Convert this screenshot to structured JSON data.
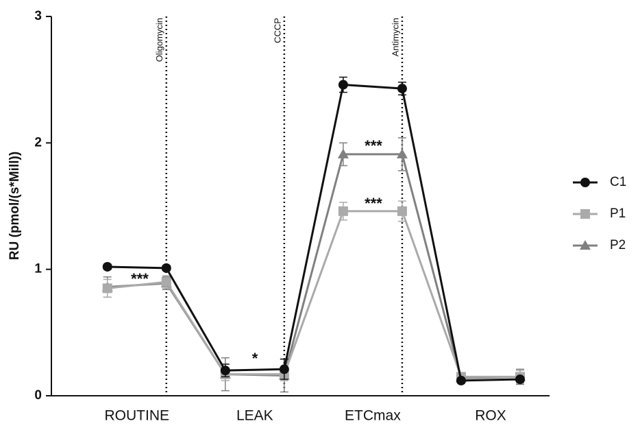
{
  "chart_data": {
    "type": "line",
    "ylabel": "RU (pmol/(s*Mill))",
    "x": [
      1,
      2,
      3,
      4,
      5,
      6,
      7,
      8
    ],
    "xlim": [
      0.05,
      8.5
    ],
    "xticks": [
      {
        "value": 1.5,
        "label": "ROUTINE"
      },
      {
        "value": 3.5,
        "label": "LEAK"
      },
      {
        "value": 5.5,
        "label": "ETCmax"
      },
      {
        "value": 7.5,
        "label": "ROX"
      }
    ],
    "ylim": [
      0,
      3
    ],
    "yticks": [
      0,
      1,
      2,
      3
    ],
    "series": [
      {
        "name": "C1",
        "color": "#111111",
        "marker": "circle",
        "values": [
          1.02,
          1.01,
          0.2,
          0.21,
          2.46,
          2.43,
          0.12,
          0.13
        ],
        "errors": [
          0.02,
          0.02,
          0.05,
          0.08,
          0.06,
          0.05,
          0.02,
          0.02
        ]
      },
      {
        "name": "P1",
        "color": "#aaaaaa",
        "marker": "square",
        "values": [
          0.85,
          0.9,
          0.17,
          0.17,
          1.46,
          1.46,
          0.15,
          0.15
        ],
        "errors": [
          0.07,
          0.05,
          0.05,
          0.05,
          0.07,
          0.08,
          0.03,
          0.05
        ]
      },
      {
        "name": "P2",
        "color": "#808080",
        "marker": "triangle",
        "values": [
          0.86,
          0.89,
          0.17,
          0.16,
          1.91,
          1.91,
          0.14,
          0.15
        ],
        "errors": [
          0.08,
          0.05,
          0.13,
          0.13,
          0.09,
          0.13,
          0.03,
          0.06
        ]
      }
    ],
    "reference_lines": [
      {
        "x": 2,
        "label": "Oligomycin"
      },
      {
        "x": 4,
        "label": "CCCP"
      },
      {
        "x": 6,
        "label": "Antimycin"
      }
    ],
    "annotations": [
      "***",
      "*",
      "***",
      "***"
    ]
  }
}
